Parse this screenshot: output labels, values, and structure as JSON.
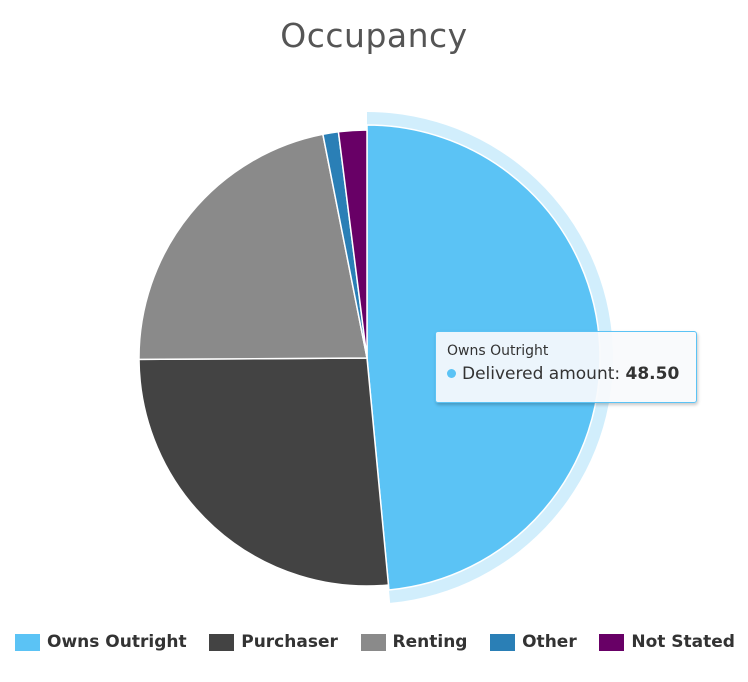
{
  "chart_data": {
    "type": "pie",
    "title": "Occupancy",
    "categories": [
      "Owns Outright",
      "Purchaser",
      "Renting",
      "Other",
      "Not Stated"
    ],
    "values": [
      48.5,
      26.4,
      22.0,
      1.1,
      2.0
    ],
    "colors": [
      "#5bc3f5",
      "#434343",
      "#8a8a8a",
      "#2a7fb6",
      "#680066"
    ],
    "highlighted": "Owns Outright",
    "legend_position": "bottom"
  },
  "tooltip": {
    "title": "Owns Outright",
    "series_label": "Delivered amount:",
    "value": "48.50"
  }
}
